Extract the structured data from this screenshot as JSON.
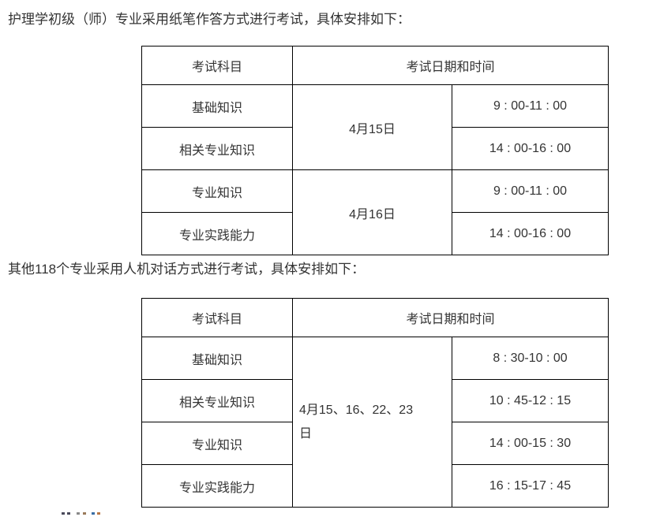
{
  "page": {
    "intro1": "护理学初级（师）专业采用纸笔作答方式进行考试，具体安排如下：",
    "intro2": "其他118个专业采用人机对话方式进行考试，具体安排如下："
  },
  "table1": {
    "headers": {
      "subject": "考试科目",
      "datetime": "考试日期和时间"
    },
    "dates": [
      "4月15日",
      "4月16日"
    ],
    "rows": [
      {
        "subject": "基础知识",
        "time": "9 : 00-11 : 00"
      },
      {
        "subject": "相关专业知识",
        "time": "14 : 00-16 : 00"
      },
      {
        "subject": "专业知识",
        "time": "9 : 00-11 : 00"
      },
      {
        "subject": "专业实践能力",
        "time": "14 : 00-16 : 00"
      }
    ]
  },
  "table2": {
    "headers": {
      "subject": "考试科目",
      "datetime": "考试日期和时间"
    },
    "date": "4月15、16、22、23日",
    "rows": [
      {
        "subject": "基础知识",
        "time": "8 : 30-10 : 00"
      },
      {
        "subject": "相关专业知识",
        "time": "10 : 45-12 : 15"
      },
      {
        "subject": "专业知识",
        "time": "14 : 00-15 : 30"
      },
      {
        "subject": "专业实践能力",
        "time": "16 : 15-17 : 45"
      }
    ]
  },
  "colors": {
    "text": "#333333",
    "border": "#000000",
    "background": "#ffffff"
  }
}
